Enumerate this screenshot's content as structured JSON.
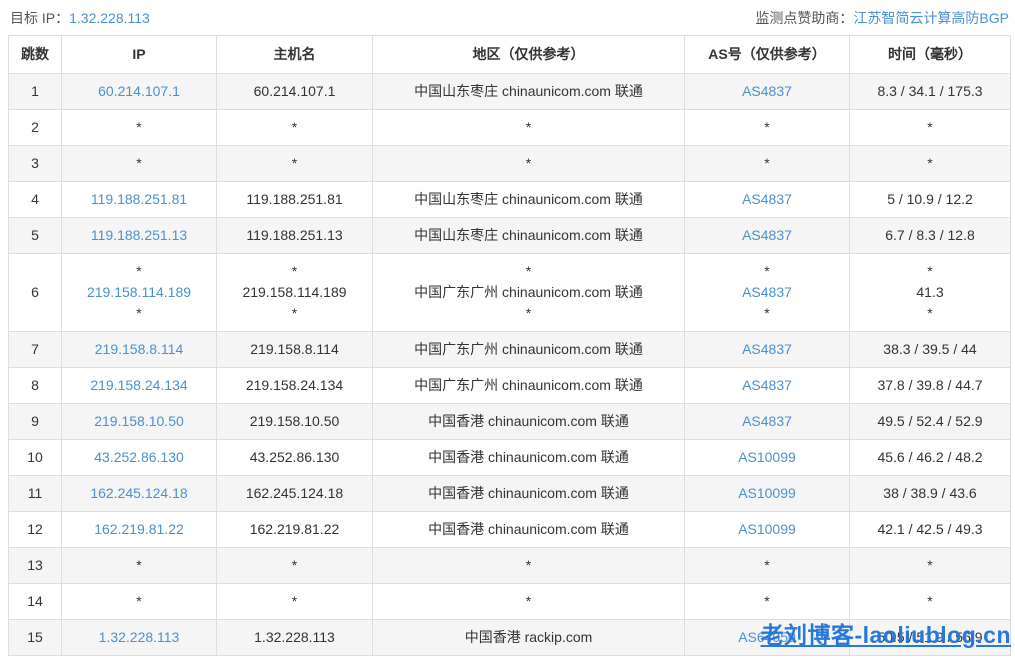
{
  "page": {
    "target_ip_label": "目标 IP：",
    "target_ip": "1.32.228.113",
    "sponsor_label": "监测点赞助商：",
    "sponsor_name": "江苏智简云计算高防BGP",
    "watermark": "老刘博客-laoliublog.cn"
  },
  "colors": {
    "link_blue": "#4a90d2",
    "watermark_blue": "#2778d9",
    "stripe_gray": "#f5f5f5",
    "border_gray": "#dddddd",
    "text_dark": "#333333",
    "label_gray": "#555555"
  },
  "table": {
    "columns": [
      "跳数",
      "IP",
      "主机名",
      "地区（仅供参考）",
      "AS号（仅供参考）",
      "时间（毫秒）"
    ],
    "rows": [
      {
        "hop": "1",
        "ip": [
          {
            "t": "60.214.107.1",
            "link": true
          }
        ],
        "host": [
          "60.214.107.1"
        ],
        "region": [
          "中国山东枣庄 chinaunicom.com 联通"
        ],
        "asn": [
          {
            "t": "AS4837",
            "link": true
          }
        ],
        "time": [
          "8.3 / 34.1 / 175.3"
        ]
      },
      {
        "hop": "2",
        "ip": [
          "*"
        ],
        "host": [
          "*"
        ],
        "region": [
          "*"
        ],
        "asn": [
          "*"
        ],
        "time": [
          "*"
        ]
      },
      {
        "hop": "3",
        "ip": [
          "*"
        ],
        "host": [
          "*"
        ],
        "region": [
          "*"
        ],
        "asn": [
          "*"
        ],
        "time": [
          "*"
        ]
      },
      {
        "hop": "4",
        "ip": [
          {
            "t": "119.188.251.81",
            "link": true
          }
        ],
        "host": [
          "119.188.251.81"
        ],
        "region": [
          "中国山东枣庄 chinaunicom.com 联通"
        ],
        "asn": [
          {
            "t": "AS4837",
            "link": true
          }
        ],
        "time": [
          "5 / 10.9 / 12.2"
        ]
      },
      {
        "hop": "5",
        "ip": [
          {
            "t": "119.188.251.13",
            "link": true
          }
        ],
        "host": [
          "119.188.251.13"
        ],
        "region": [
          "中国山东枣庄 chinaunicom.com 联通"
        ],
        "asn": [
          {
            "t": "AS4837",
            "link": true
          }
        ],
        "time": [
          "6.7 / 8.3 / 12.8"
        ]
      },
      {
        "hop": "6",
        "ip": [
          "*",
          {
            "t": "219.158.114.189",
            "link": true
          },
          "*"
        ],
        "host": [
          "*",
          "219.158.114.189",
          "*"
        ],
        "region": [
          "*",
          "中国广东广州 chinaunicom.com 联通",
          "*"
        ],
        "asn": [
          "*",
          {
            "t": "AS4837",
            "link": true
          },
          "*"
        ],
        "time": [
          "*",
          "41.3",
          "*"
        ]
      },
      {
        "hop": "7",
        "ip": [
          {
            "t": "219.158.8.114",
            "link": true
          }
        ],
        "host": [
          "219.158.8.114"
        ],
        "region": [
          "中国广东广州 chinaunicom.com 联通"
        ],
        "asn": [
          {
            "t": "AS4837",
            "link": true
          }
        ],
        "time": [
          "38.3 / 39.5 / 44"
        ]
      },
      {
        "hop": "8",
        "ip": [
          {
            "t": "219.158.24.134",
            "link": true
          }
        ],
        "host": [
          "219.158.24.134"
        ],
        "region": [
          "中国广东广州 chinaunicom.com 联通"
        ],
        "asn": [
          {
            "t": "AS4837",
            "link": true
          }
        ],
        "time": [
          "37.8 / 39.8 / 44.7"
        ]
      },
      {
        "hop": "9",
        "ip": [
          {
            "t": "219.158.10.50",
            "link": true
          }
        ],
        "host": [
          "219.158.10.50"
        ],
        "region": [
          "中国香港 chinaunicom.com 联通"
        ],
        "asn": [
          {
            "t": "AS4837",
            "link": true
          }
        ],
        "time": [
          "49.5 / 52.4 / 52.9"
        ]
      },
      {
        "hop": "10",
        "ip": [
          {
            "t": "43.252.86.130",
            "link": true
          }
        ],
        "host": [
          "43.252.86.130"
        ],
        "region": [
          "中国香港 chinaunicom.com 联通"
        ],
        "asn": [
          {
            "t": "AS10099",
            "link": true
          }
        ],
        "time": [
          "45.6 / 46.2 / 48.2"
        ]
      },
      {
        "hop": "11",
        "ip": [
          {
            "t": "162.245.124.18",
            "link": true
          }
        ],
        "host": [
          "162.245.124.18"
        ],
        "region": [
          "中国香港 chinaunicom.com 联通"
        ],
        "asn": [
          {
            "t": "AS10099",
            "link": true
          }
        ],
        "time": [
          "38 / 38.9 / 43.6"
        ]
      },
      {
        "hop": "12",
        "ip": [
          {
            "t": "162.219.81.22",
            "link": true
          }
        ],
        "host": [
          "162.219.81.22"
        ],
        "region": [
          "中国香港 chinaunicom.com 联通"
        ],
        "asn": [
          {
            "t": "AS10099",
            "link": true
          }
        ],
        "time": [
          "42.1 / 42.5 / 49.3"
        ]
      },
      {
        "hop": "13",
        "ip": [
          "*"
        ],
        "host": [
          "*"
        ],
        "region": [
          "*"
        ],
        "asn": [
          "*"
        ],
        "time": [
          "*"
        ]
      },
      {
        "hop": "14",
        "ip": [
          "*"
        ],
        "host": [
          "*"
        ],
        "region": [
          "*"
        ],
        "asn": [
          "*"
        ],
        "time": [
          "*"
        ]
      },
      {
        "hop": "15",
        "ip": [
          {
            "t": "1.32.228.113",
            "link": true
          }
        ],
        "host": [
          "1.32.228.113"
        ],
        "region": [
          "中国香港 rackip.com"
        ],
        "asn": [
          {
            "t": "AS64050",
            "link": true
          }
        ],
        "time": [
          "50.5 / 51.9 / 56.9"
        ]
      }
    ]
  }
}
